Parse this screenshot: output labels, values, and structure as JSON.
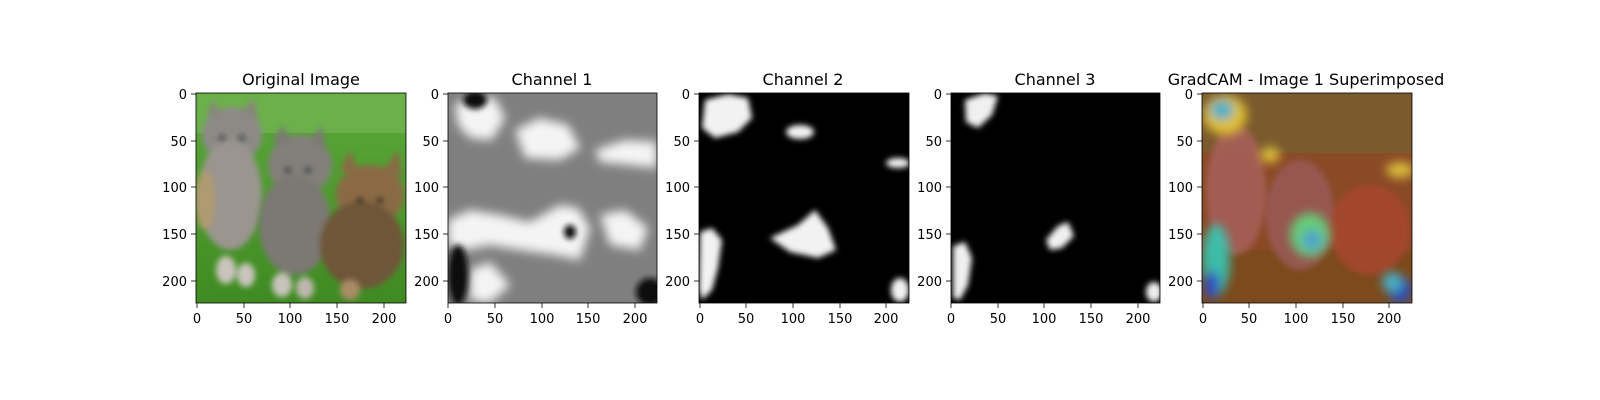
{
  "chart_data": [
    {
      "type": "image",
      "title": "Original Image",
      "content": "photo-kittens-on-grass",
      "xlim": [
        0,
        224
      ],
      "ylim": [
        224,
        0
      ],
      "xticks": [
        0,
        50,
        100,
        150,
        200
      ],
      "yticks": [
        0,
        50,
        100,
        150,
        200
      ]
    },
    {
      "type": "heatmap",
      "title": "Channel 1",
      "colormap": "gray",
      "background_level": 0.5,
      "xlim": [
        0,
        224
      ],
      "ylim": [
        224,
        0
      ],
      "xticks": [
        0,
        50,
        100,
        150,
        200
      ],
      "yticks": [
        0,
        50,
        100,
        150,
        200
      ]
    },
    {
      "type": "heatmap",
      "title": "Channel 2",
      "colormap": "gray",
      "background_level": 0.0,
      "xlim": [
        0,
        224
      ],
      "ylim": [
        224,
        0
      ],
      "xticks": [
        0,
        50,
        100,
        150,
        200
      ],
      "yticks": [
        0,
        50,
        100,
        150,
        200
      ]
    },
    {
      "type": "heatmap",
      "title": "Channel 3",
      "colormap": "gray",
      "background_level": 0.0,
      "xlim": [
        0,
        224
      ],
      "ylim": [
        224,
        0
      ],
      "xticks": [
        0,
        50,
        100,
        150,
        200
      ],
      "yticks": [
        0,
        50,
        100,
        150,
        200
      ]
    },
    {
      "type": "image",
      "title": "GradCAM - Image 1 Superimposed",
      "content": "photo-kittens-with-jet-heatmap-overlay",
      "colormap": "jet",
      "xlim": [
        0,
        224
      ],
      "ylim": [
        224,
        0
      ],
      "xticks": [
        0,
        50,
        100,
        150,
        200
      ],
      "yticks": [
        0,
        50,
        100,
        150,
        200
      ]
    }
  ]
}
